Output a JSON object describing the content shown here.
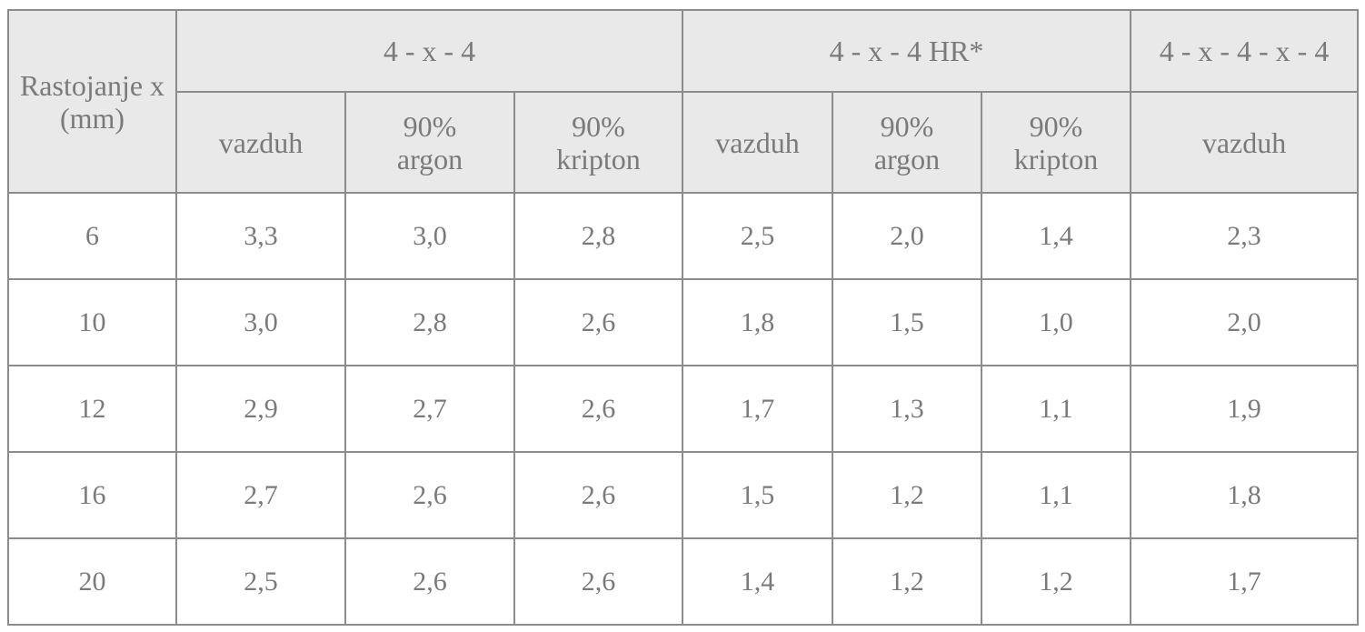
{
  "table": {
    "row_header": "Rastojanje x (mm)",
    "groups": [
      "4 - x - 4",
      "4 - x - 4 HR*",
      "4 - x - 4 - x - 4"
    ],
    "subheaders": [
      "vazduh",
      "90%\nargon",
      "90%\nkripton",
      "vazduh",
      "90%\nargon",
      "90%\nkripton",
      "vazduh"
    ],
    "rows": [
      [
        "6",
        "3,3",
        "3,0",
        "2,8",
        "2,5",
        "2,0",
        "1,4",
        "2,3"
      ],
      [
        "10",
        "3,0",
        "2,8",
        "2,6",
        "1,8",
        "1,5",
        "1,0",
        "2,0"
      ],
      [
        "12",
        "2,9",
        "2,7",
        "2,6",
        "1,7",
        "1,3",
        "1,1",
        "1,9"
      ],
      [
        "16",
        "2,7",
        "2,6",
        "2,6",
        "1,5",
        "1,2",
        "1,1",
        "1,8"
      ],
      [
        "20",
        "2,5",
        "2,6",
        "2,6",
        "1,4",
        "1,2",
        "1,2",
        "1,7"
      ]
    ]
  }
}
